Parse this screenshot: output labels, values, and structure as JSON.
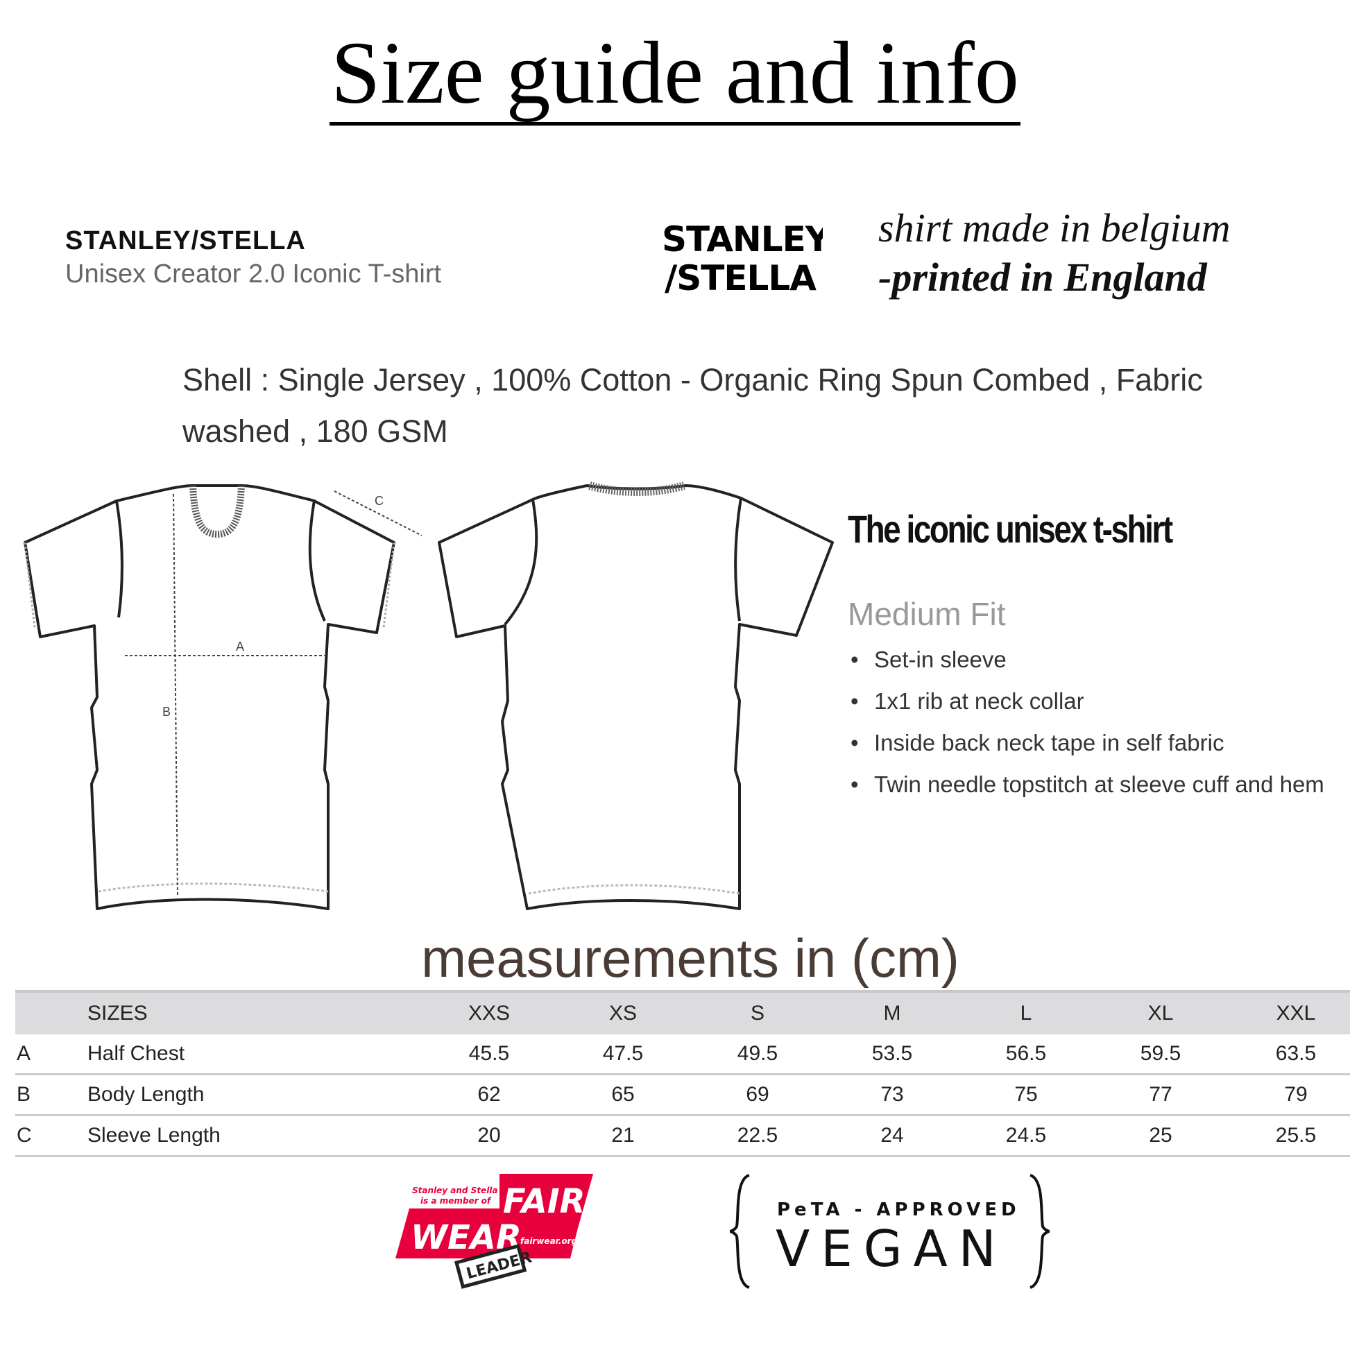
{
  "title": "Size guide and info",
  "brand": {
    "name": "STANLEY/STELLA",
    "product": "Unisex Creator 2.0 Iconic T-shirt",
    "logo_text": [
      "STANLEY",
      "/STELLA"
    ]
  },
  "origin": {
    "made": "shirt made in belgium",
    "printed": "-printed in England"
  },
  "shell": {
    "line1": "Shell : Single Jersey , 100% Cotton - Organic Ring Spun Combed , Fabric",
    "line2": "washed , 180 GSM"
  },
  "diagram": {
    "labels": [
      "A",
      "B",
      "C"
    ]
  },
  "features": {
    "heading": "The iconic unisex t-shirt",
    "fit": "Medium Fit",
    "bullets": [
      "Set-in sleeve",
      "1x1 rib at neck collar",
      "Inside back neck tape in self fabric",
      "Twin needle topstitch at sleeve cuff and hem"
    ]
  },
  "measurements_title": "measurements in (cm)",
  "table": {
    "header": {
      "label": "SIZES",
      "sizes": [
        "XXS",
        "XS",
        "S",
        "M",
        "L",
        "XL",
        "XXL"
      ]
    },
    "rows": [
      {
        "key": "A",
        "label": "Half Chest",
        "values": [
          "45.5",
          "47.5",
          "49.5",
          "53.5",
          "56.5",
          "59.5",
          "63.5"
        ]
      },
      {
        "key": "B",
        "label": "Body Length",
        "values": [
          "62",
          "65",
          "69",
          "73",
          "75",
          "77",
          "79"
        ]
      },
      {
        "key": "C",
        "label": "Sleeve Length",
        "values": [
          "20",
          "21",
          "22.5",
          "24",
          "24.5",
          "25",
          "25.5"
        ]
      }
    ]
  },
  "badges": {
    "fairwear": {
      "text": [
        "Stanley and Stella",
        "is a member of",
        "FAIR",
        "WEAR",
        "fairwear.org",
        "LEADER"
      ],
      "color": "#e8003d"
    },
    "vegan": {
      "line1": "PeTA - APPROVED",
      "line2": "VEGAN"
    }
  }
}
